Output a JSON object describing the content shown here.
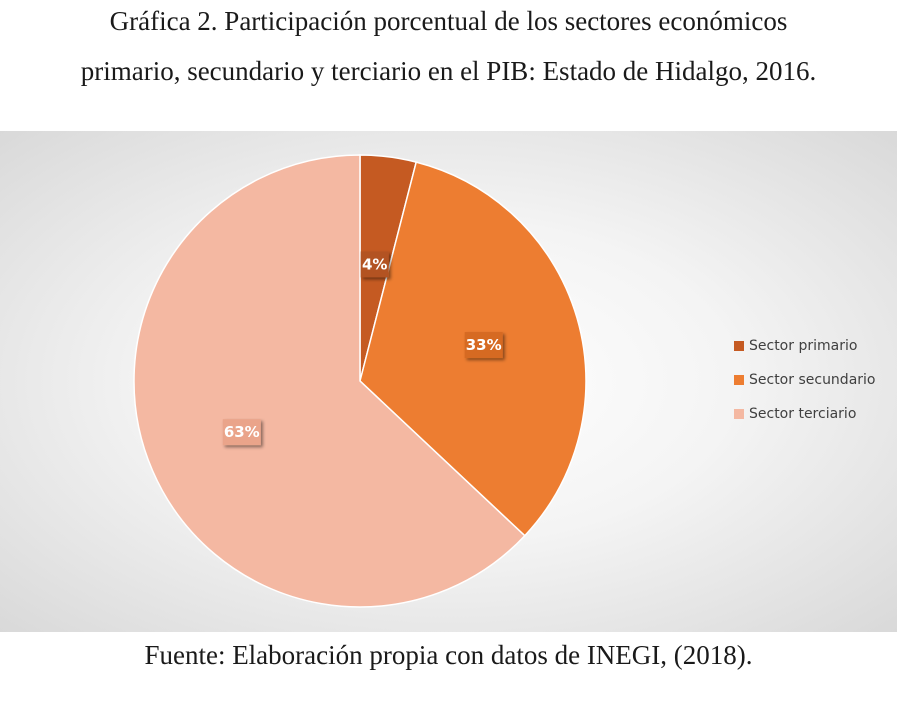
{
  "header": {
    "title_line_1": "Gráfica 2. Participación porcentual de los sectores económicos",
    "title_line_2": "primario, secundario y terciario en el PIB: Estado de Hidalgo, 2016."
  },
  "footer": {
    "source": "Fuente: Elaboración propia con datos de INEGI, (2018)."
  },
  "chart_data": {
    "type": "pie",
    "categories": [
      "Sector primario",
      "Sector secundario",
      "Sector terciario"
    ],
    "values": [
      4,
      33,
      63
    ],
    "data_labels": [
      "4%",
      "33%",
      "63%"
    ],
    "colors": [
      "#c55a22",
      "#ed7d31",
      "#f4b8a2"
    ],
    "label_colors": [
      "#b35220",
      "#d66a22",
      "#eaa48a"
    ],
    "legend_position": "right",
    "start_angle": "12 o'clock, clockwise"
  }
}
